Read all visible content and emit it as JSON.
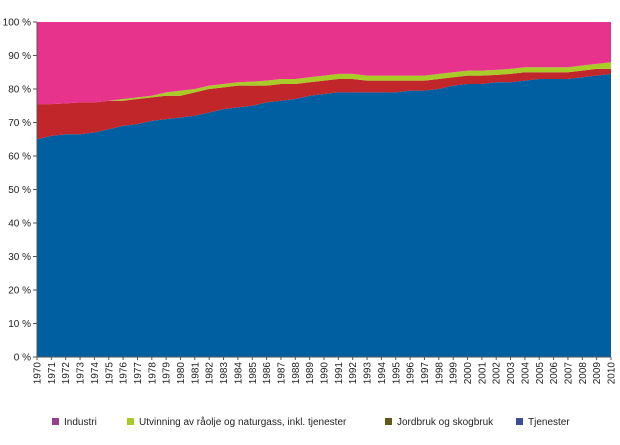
{
  "chart_data": {
    "type": "area",
    "stacked": true,
    "percent_stacked": true,
    "title": "",
    "xlabel": "",
    "ylabel": "",
    "ylim": [
      0,
      100
    ],
    "y_ticks": [
      "0 %",
      "10 %",
      "20 %",
      "30 %",
      "40 %",
      "50 %",
      "60 %",
      "70 %",
      "80 %",
      "90 %",
      "100 %"
    ],
    "grid": false,
    "legend_position": "bottom",
    "categories": [
      "1970",
      "1971",
      "1972",
      "1973",
      "1974",
      "1975",
      "1976",
      "1977",
      "1978",
      "1979",
      "1980",
      "1981",
      "1982",
      "1983",
      "1984",
      "1985",
      "1986",
      "1987",
      "1988",
      "1989",
      "1990",
      "1991",
      "1992",
      "1993",
      "1994",
      "1995",
      "1996",
      "1997",
      "1998",
      "1999",
      "2000",
      "2001",
      "2002",
      "2003",
      "2004",
      "2005",
      "2006",
      "2007",
      "2008",
      "2009",
      "2010"
    ],
    "series": [
      {
        "name": "Tjenester",
        "color": "#005fa0",
        "values": [
          65,
          66,
          66.5,
          66.5,
          67,
          68,
          69,
          69.5,
          70.5,
          71,
          71.5,
          72,
          73,
          74,
          74.5,
          75,
          76,
          76.5,
          77,
          78,
          78.5,
          79,
          79,
          79,
          79,
          79,
          79.5,
          79.5,
          80,
          81,
          81.5,
          81.5,
          82,
          82,
          82.5,
          83,
          83,
          83,
          83.5,
          84,
          84.5
        ]
      },
      {
        "name": "Jordbruk og skogbruk",
        "color": "#c0262a",
        "values": [
          10.5,
          9.5,
          9.2,
          9.5,
          9,
          8.5,
          7.5,
          7.5,
          7,
          7,
          6.5,
          7,
          7,
          6.5,
          6.5,
          6,
          5,
          5,
          4.5,
          4,
          4,
          4,
          4,
          3.5,
          3.5,
          3.5,
          3,
          3,
          3,
          2.5,
          2.5,
          2.5,
          2.2,
          2.5,
          2.5,
          2,
          2,
          2,
          2,
          2,
          1.5
        ]
      },
      {
        "name": "Utvinning av råolje og naturgass, inkl. tjenester",
        "color": "#a8cb28",
        "values": [
          0,
          0,
          0,
          0,
          0,
          0,
          0.5,
          0.5,
          0.5,
          1,
          1.5,
          1,
          1,
          1,
          1,
          1.2,
          1.5,
          1.5,
          1.5,
          1.5,
          1.5,
          1.5,
          1.5,
          1.5,
          1.5,
          1.5,
          1.5,
          1.5,
          1.5,
          1.5,
          1.5,
          1.5,
          1.5,
          1.5,
          1.5,
          1.5,
          1.5,
          1.5,
          1.5,
          1.5,
          2
        ]
      },
      {
        "name": "Industri",
        "color": "#e8338d",
        "values": [
          24.5,
          24.5,
          24.3,
          24,
          24,
          23.5,
          23,
          22.5,
          22,
          21,
          20.5,
          20,
          19,
          18.5,
          18,
          17.8,
          17.5,
          17,
          17,
          16.5,
          16,
          15.5,
          15.5,
          16,
          16,
          16,
          16,
          16,
          15.5,
          15,
          14.5,
          14.5,
          14.3,
          14,
          13.5,
          13.5,
          13.5,
          13.5,
          13,
          12.5,
          12
        ]
      }
    ],
    "legend": [
      {
        "name": "Industri",
        "color": "#9b3d8e"
      },
      {
        "name": "Utvinning av råolje og naturgass, inkl. tjenester",
        "color": "#a8cb28"
      },
      {
        "name": "Jordbruk og skogbruk",
        "color": "#5e5a1e"
      },
      {
        "name": "Tjenester",
        "color": "#3c4b9c"
      }
    ]
  }
}
